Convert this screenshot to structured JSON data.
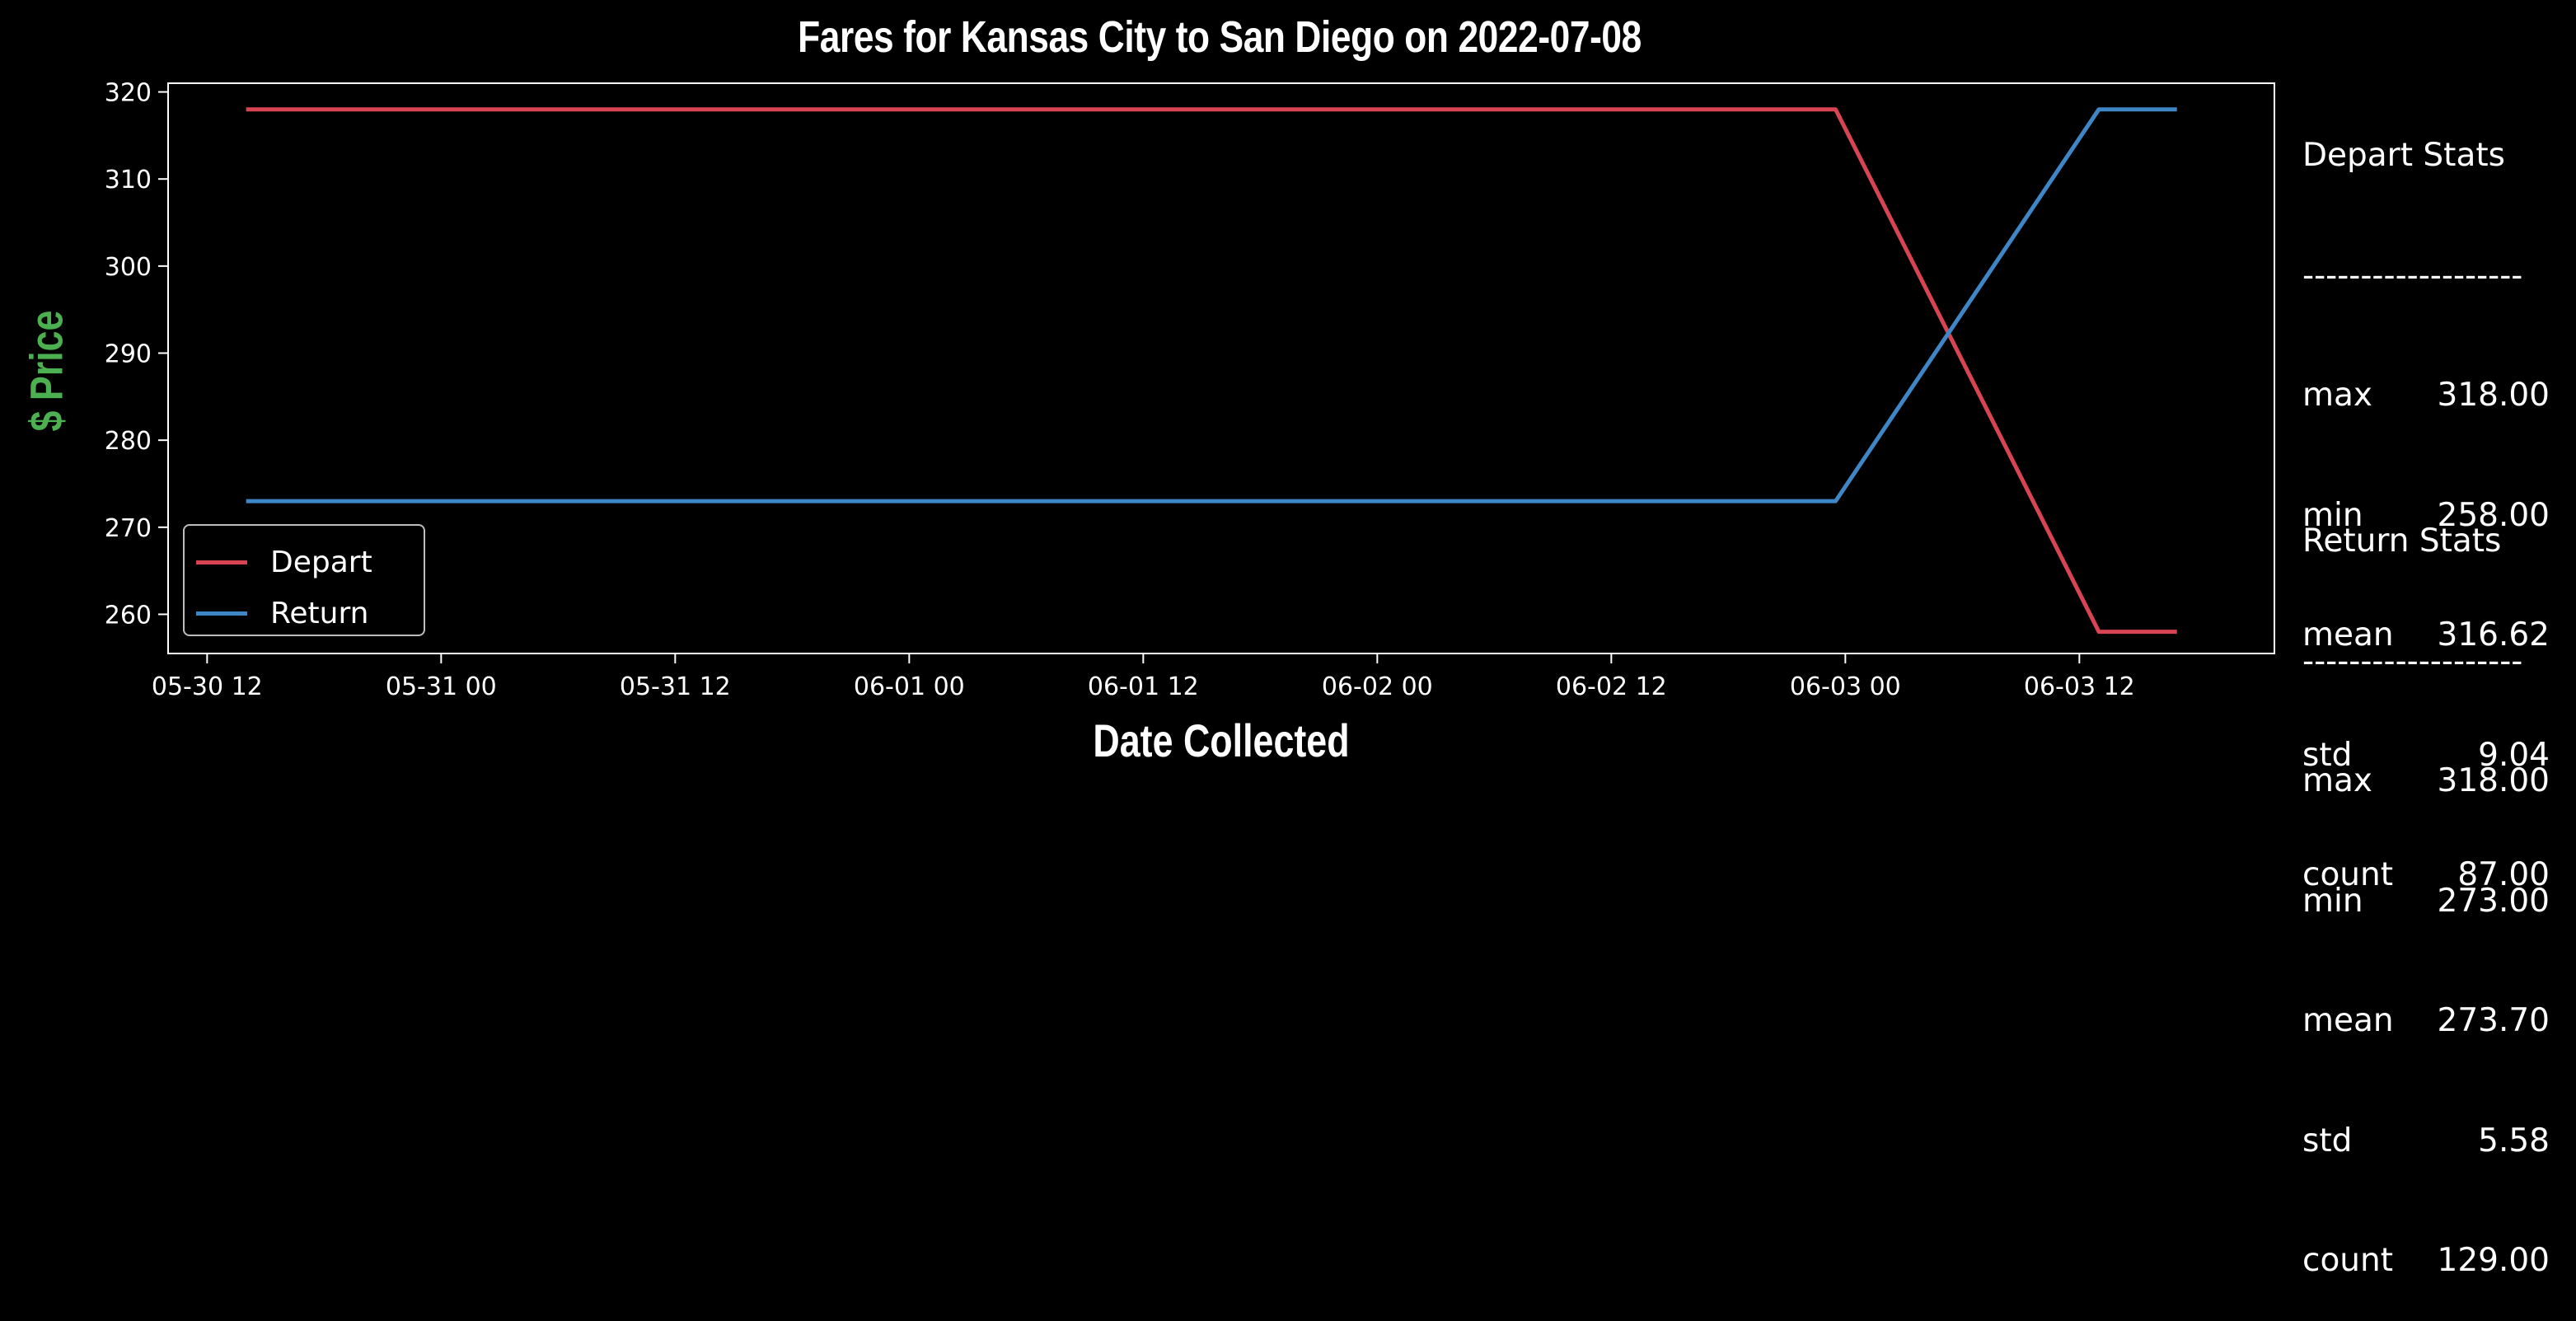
{
  "colors": {
    "background": "#000000",
    "depart": "#d94452",
    "return": "#3f86c6",
    "ylabel": "#4caf50",
    "axes": "#ffffff"
  },
  "chart_data": {
    "type": "line",
    "title": "Fares for Kansas City to San Diego on 2022-07-08",
    "xlabel": "Date Collected",
    "ylabel": "$ Price",
    "x_ticks": [
      "05-30 12",
      "05-31 00",
      "05-31 12",
      "06-01 00",
      "06-01 12",
      "06-02 00",
      "06-02 12",
      "06-03 00",
      "06-03 12"
    ],
    "y_ticks": [
      260,
      270,
      280,
      290,
      300,
      310,
      320
    ],
    "xlim": [
      "2022-05-30 10:00",
      "2022-06-03 22:00"
    ],
    "ylim": [
      255.5,
      321
    ],
    "grid": false,
    "legend_position": "lower-left",
    "series": [
      {
        "name": "Depart",
        "color": "#d94452",
        "points": [
          [
            "2022-05-30 14:00",
            318
          ],
          [
            "2022-06-02 23:30",
            318
          ],
          [
            "2022-06-03 13:00",
            258
          ],
          [
            "2022-06-03 17:00",
            258
          ]
        ]
      },
      {
        "name": "Return",
        "color": "#3f86c6",
        "points": [
          [
            "2022-05-30 14:00",
            273
          ],
          [
            "2022-06-02 23:30",
            273
          ],
          [
            "2022-06-03 13:00",
            318
          ],
          [
            "2022-06-03 17:00",
            318
          ]
        ]
      }
    ]
  },
  "depart_stats": {
    "heading": "Depart Stats",
    "divider": "-------------------",
    "rows": [
      {
        "key": "max",
        "value": "318.00"
      },
      {
        "key": "min",
        "value": "258.00"
      },
      {
        "key": "mean",
        "value": "316.62"
      },
      {
        "key": "std",
        "value": "9.04"
      },
      {
        "key": "count",
        "value": "87.00"
      }
    ]
  },
  "return_stats": {
    "heading": "Return Stats",
    "divider": "-------------------",
    "rows": [
      {
        "key": "max",
        "value": "318.00"
      },
      {
        "key": "min",
        "value": "273.00"
      },
      {
        "key": "mean",
        "value": "273.70"
      },
      {
        "key": "std",
        "value": "5.58"
      },
      {
        "key": "count",
        "value": "129.00"
      }
    ]
  }
}
